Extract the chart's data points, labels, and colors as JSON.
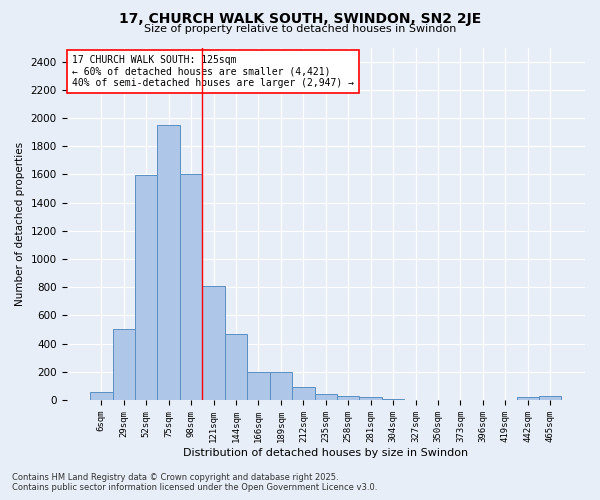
{
  "title": "17, CHURCH WALK SOUTH, SWINDON, SN2 2JE",
  "subtitle": "Size of property relative to detached houses in Swindon",
  "xlabel": "Distribution of detached houses by size in Swindon",
  "ylabel": "Number of detached properties",
  "bar_labels": [
    "6sqm",
    "29sqm",
    "52sqm",
    "75sqm",
    "98sqm",
    "121sqm",
    "144sqm",
    "166sqm",
    "189sqm",
    "212sqm",
    "235sqm",
    "258sqm",
    "281sqm",
    "304sqm",
    "327sqm",
    "350sqm",
    "373sqm",
    "396sqm",
    "419sqm",
    "442sqm",
    "465sqm"
  ],
  "bar_values": [
    55,
    500,
    1595,
    1950,
    1600,
    805,
    470,
    195,
    195,
    90,
    40,
    30,
    20,
    10,
    0,
    0,
    0,
    0,
    0,
    20,
    25
  ],
  "bar_color": "#aec6e8",
  "bar_edge_color": "#5a8fc2",
  "vline_color": "red",
  "vline_x": 4.5,
  "annotation_text": "17 CHURCH WALK SOUTH: 125sqm\n← 60% of detached houses are smaller (4,421)\n40% of semi-detached houses are larger (2,947) →",
  "annotation_box_color": "white",
  "annotation_box_edge": "red",
  "ylim": [
    0,
    2500
  ],
  "yticks": [
    0,
    200,
    400,
    600,
    800,
    1000,
    1200,
    1400,
    1600,
    1800,
    2000,
    2200,
    2400
  ],
  "bg_color": "#e8eef7",
  "grid_color": "white",
  "footer1": "Contains HM Land Registry data © Crown copyright and database right 2025.",
  "footer2": "Contains public sector information licensed under the Open Government Licence v3.0."
}
